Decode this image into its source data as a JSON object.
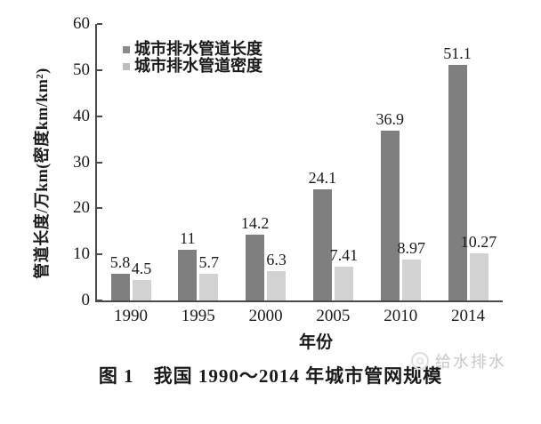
{
  "figure": {
    "caption": "图 1　我国 1990～2014 年城市管网规模"
  },
  "watermark": {
    "icon": "magazine-logo-circle-icon",
    "text": "给水排水"
  },
  "colors": {
    "series_length": "#7f7f7f",
    "series_density": "#d2d2d2",
    "legend_density_swatch": "#bdbdbd",
    "axis": "#4a4a4a",
    "text": "#1a1a1a",
    "watermark": "#c8c8c8"
  },
  "chart_data": {
    "type": "bar",
    "title": "",
    "categories": [
      "1990",
      "1995",
      "2000",
      "2005",
      "2010",
      "2014"
    ],
    "series": [
      {
        "key": "length",
        "name": "城市排水管道长度",
        "color": "#7f7f7f",
        "swatch_color": "#8a8a8a",
        "values": [
          5.8,
          11,
          14.2,
          24.1,
          36.9,
          51.1
        ],
        "value_labels": [
          "5.8",
          "11",
          "14.2",
          "24.1",
          "36.9",
          "51.1"
        ]
      },
      {
        "key": "density",
        "name": "城市排水管道密度",
        "color": "#d2d2d2",
        "swatch_color": "#bdbdbd",
        "values": [
          4.5,
          5.7,
          6.3,
          7.41,
          8.97,
          10.27
        ],
        "value_labels": [
          "4.5",
          "5.7",
          "6.3",
          "7.41",
          "8.97",
          "10.27"
        ]
      }
    ],
    "xlabel": "年份",
    "ylabel": "管道长度/万km(密度km/km²)",
    "ylim": [
      0,
      60
    ],
    "ytick_step": 10,
    "yticks": [
      0,
      10,
      20,
      30,
      40,
      50,
      60
    ],
    "legend_position": "top-left-inside",
    "grid": false,
    "value_labels_shown": true
  }
}
